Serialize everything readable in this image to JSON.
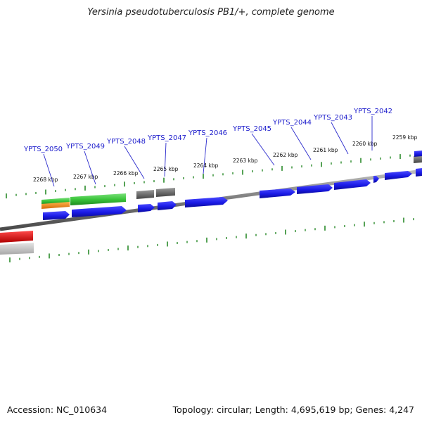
{
  "title": "Yersinia pseudotuberculosis PB1/+, complete genome",
  "footer": {
    "accession": "Accession: NC_010634",
    "summary": "Topology: circular; Length: 4,695,619 bp; Genes: 4,247"
  },
  "colors": {
    "backbone": "#8c8c8c",
    "tick": "#2a8a2a",
    "gene_label": "#1c1ccc",
    "leader": "#2a2acc",
    "cds": "#1a1ae6",
    "rna": "#3ac43a",
    "pseudo": "#6e6e6e",
    "orange": "#f08a1e",
    "red": "#e01212"
  },
  "kbp_marks": [
    {
      "label": "2268 kbp"
    },
    {
      "label": "2267 kbp"
    },
    {
      "label": "2266 kbp"
    },
    {
      "label": "2265 kbp"
    },
    {
      "label": "2264 kbp"
    },
    {
      "label": "2263 kbp"
    },
    {
      "label": "2262 kbp"
    },
    {
      "label": "2261 kbp"
    },
    {
      "label": "2260 kbp"
    },
    {
      "label": "2259 kbp"
    }
  ],
  "genes": [
    {
      "label": "YPTS_2050"
    },
    {
      "label": "YPTS_2049"
    },
    {
      "label": "YPTS_2048"
    },
    {
      "label": "YPTS_2047"
    },
    {
      "label": "YPTS_2046"
    },
    {
      "label": "YPTS_2045"
    },
    {
      "label": "YPTS_2044"
    },
    {
      "label": "YPTS_2043"
    },
    {
      "label": "YPTS_2042"
    }
  ]
}
